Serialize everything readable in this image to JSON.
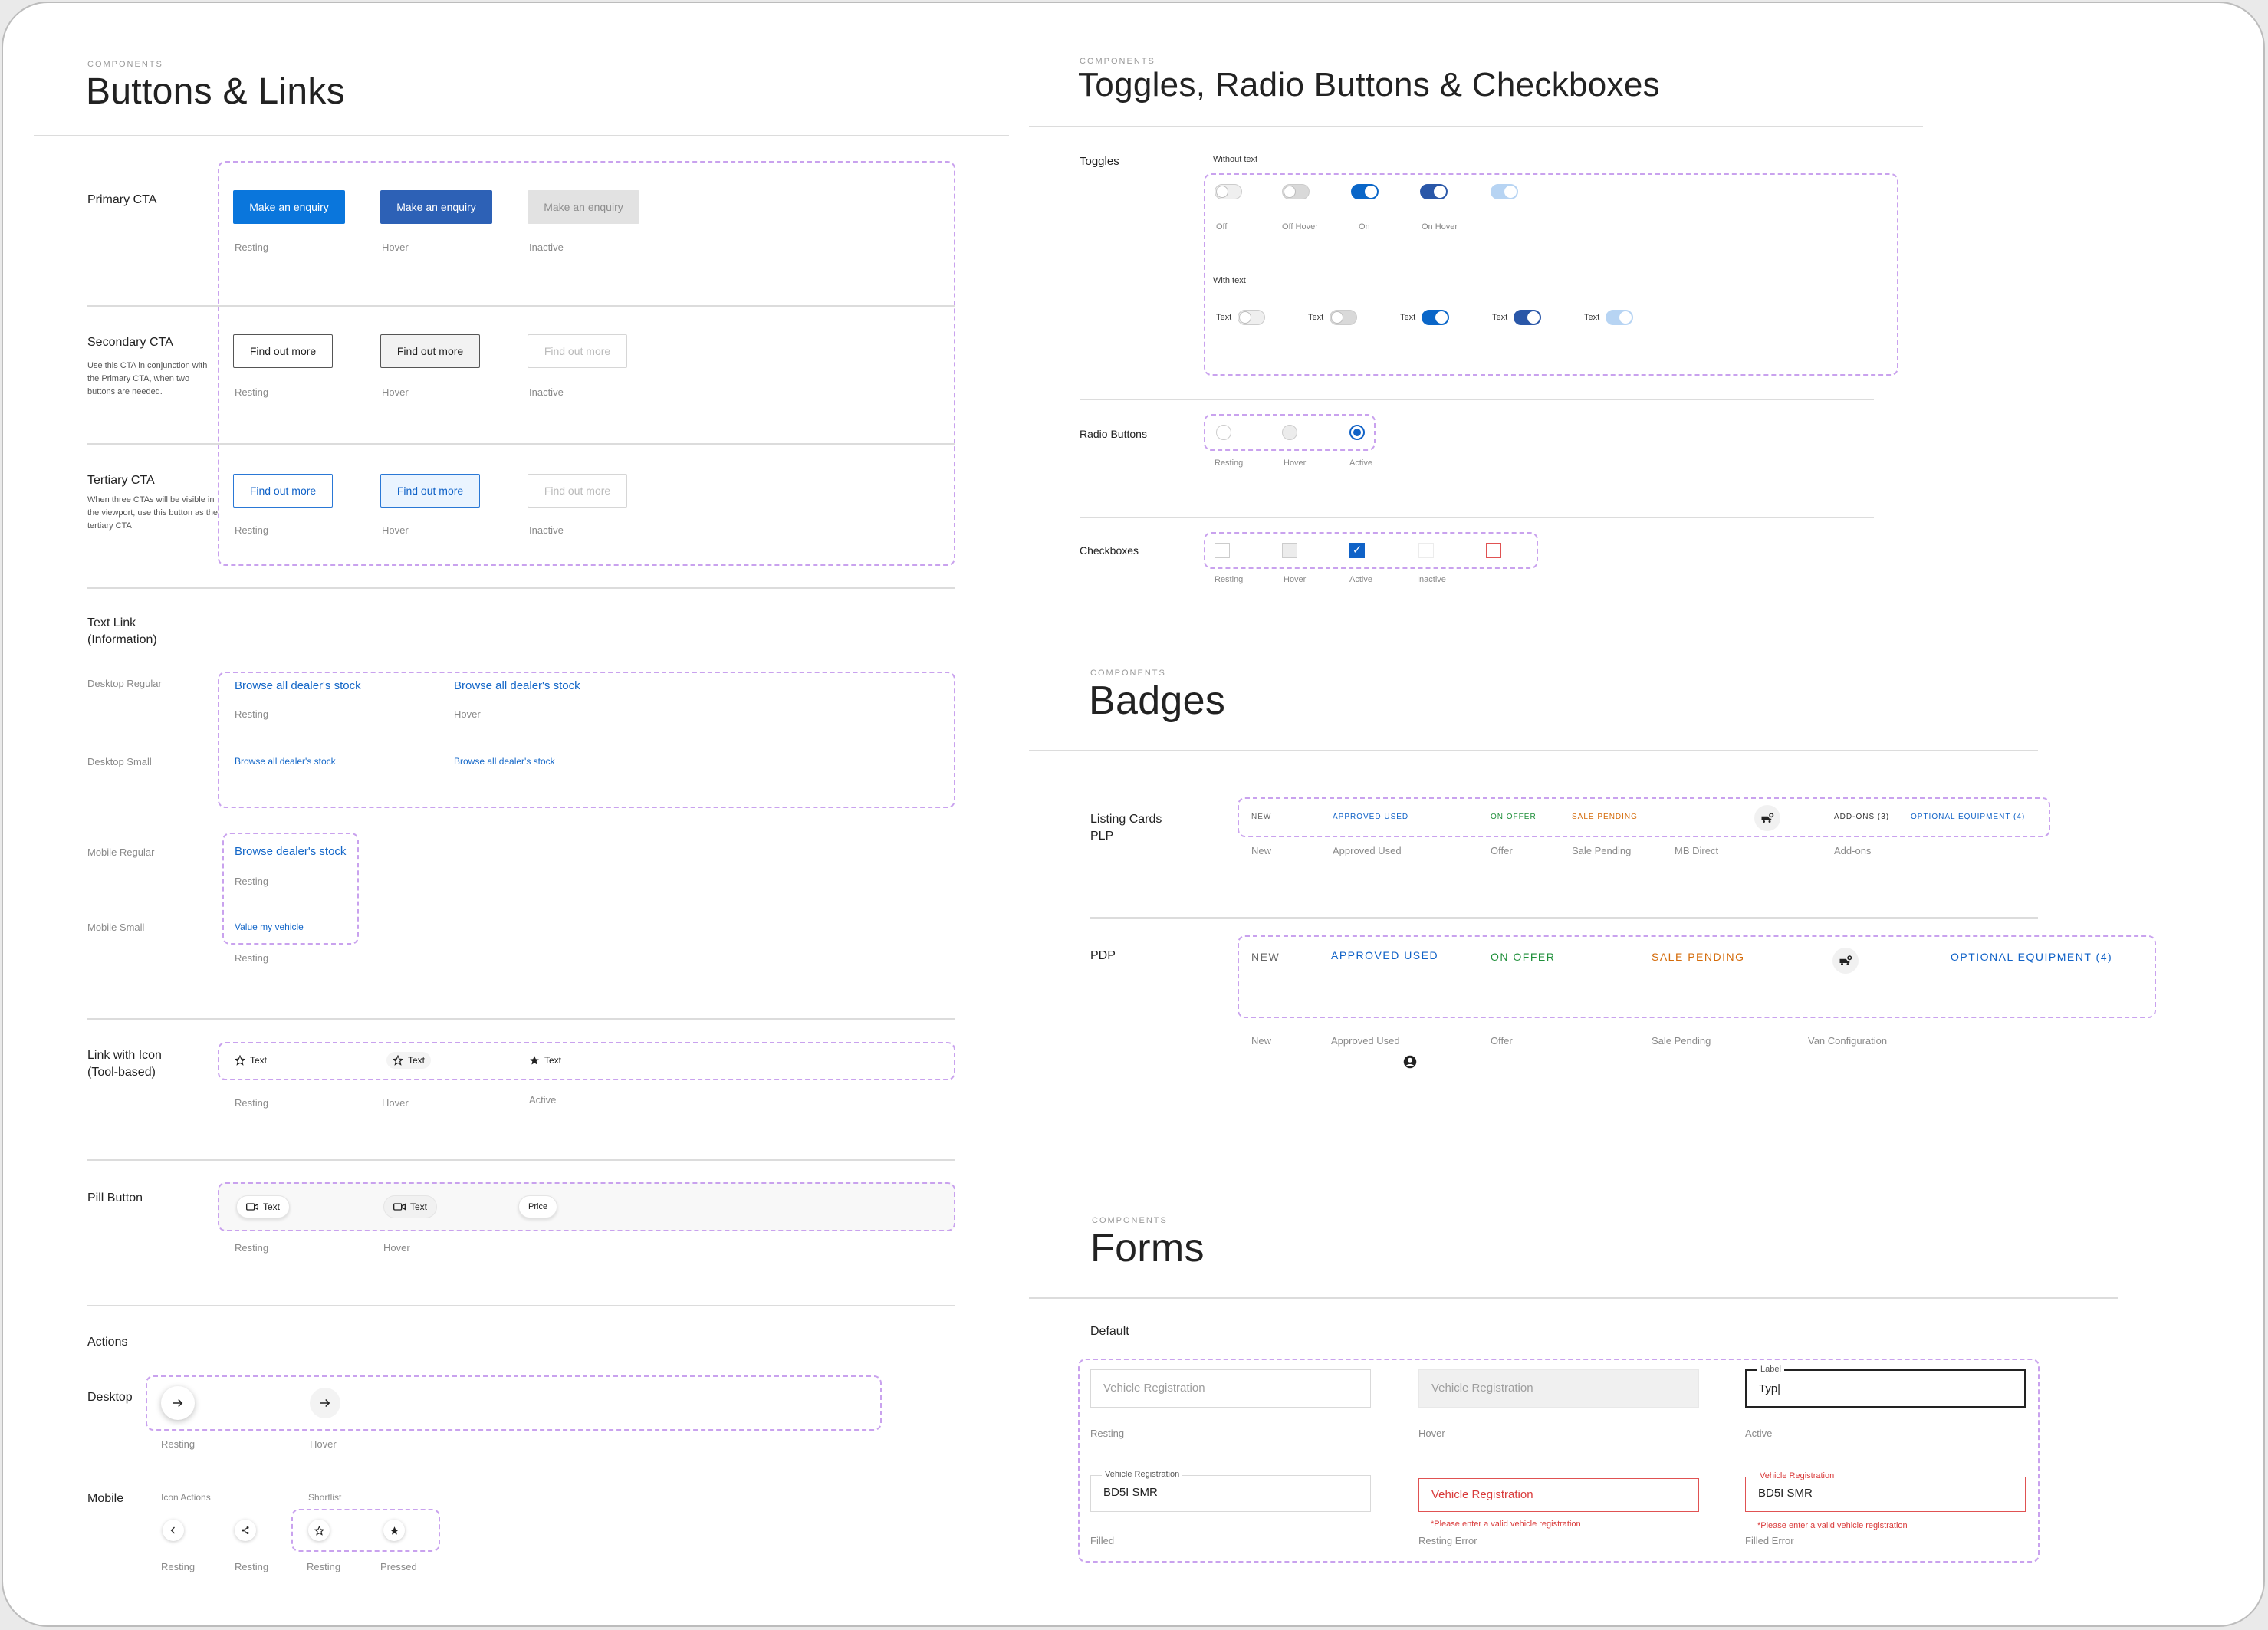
{
  "buttons_links": {
    "eyebrow": "COMPONENTS",
    "title": "Buttons & Links",
    "primary": {
      "label": "Primary CTA",
      "button_text": "Make an enquiry",
      "states": [
        "Resting",
        "Hover",
        "Inactive"
      ]
    },
    "secondary": {
      "label": "Secondary CTA",
      "desc": "Use this CTA in conjunction with the Primary CTA, when two buttons are needed.",
      "button_text": "Find out more",
      "states": [
        "Resting",
        "Hover",
        "Inactive"
      ]
    },
    "tertiary": {
      "label": "Tertiary CTA",
      "desc": "When three CTAs will be visible in the viewport, use this button as the tertiary CTA",
      "button_text": "Find out more",
      "states": [
        "Resting",
        "Hover",
        "Inactive"
      ]
    },
    "text_link": {
      "label_line1": "Text Link",
      "label_line2": "(Information)",
      "desktop_regular": "Desktop Regular",
      "desktop_small": "Desktop Small",
      "mobile_regular": "Mobile Regular",
      "mobile_small": "Mobile Small",
      "link_text": "Browse all dealer's stock",
      "mobile_link_text": "Browse dealer's stock",
      "mobile_small_text": "Value my vehicle",
      "resting": "Resting",
      "hover": "Hover"
    },
    "link_icon": {
      "label_line1": "Link with Icon",
      "label_line2": "(Tool-based)",
      "text": "Text",
      "states": [
        "Resting",
        "Hover",
        "Active"
      ]
    },
    "pill": {
      "label": "Pill Button",
      "text": "Text",
      "price": "Price",
      "states": [
        "Resting",
        "Hover"
      ]
    },
    "actions": {
      "label": "Actions",
      "desktop": "Desktop",
      "mobile": "Mobile",
      "icon_actions": "Icon Actions",
      "shortlist": "Shortlist",
      "desktop_states": [
        "Resting",
        "Hover"
      ],
      "mobile_states": [
        "Resting",
        "Resting",
        "Resting",
        "Pressed"
      ]
    }
  },
  "toggles": {
    "eyebrow": "COMPONENTS",
    "title": "Toggles, Radio Buttons & Checkboxes",
    "label": "Toggles",
    "without_text": "Without text",
    "with_text": "With text",
    "states": [
      "Off",
      "Off Hover",
      "On",
      "On Hover"
    ],
    "text": "Text",
    "radio_label": "Radio Buttons",
    "radio_states": [
      "Resting",
      "Hover",
      "Active"
    ],
    "checkbox_label": "Checkboxes",
    "checkbox_states": [
      "Resting",
      "Hover",
      "Active",
      "Inactive"
    ]
  },
  "badges": {
    "eyebrow": "COMPONENTS",
    "title": "Badges",
    "plp_line1": "Listing Cards",
    "plp_line2": "PLP",
    "pdp": "PDP",
    "new": "NEW",
    "approved": "APPROVED USED",
    "offer": "ON OFFER",
    "pending": "SALE PENDING",
    "addons": "ADD-ONS (3)",
    "optional": "OPTIONAL EQUIPMENT (4)",
    "plp_captions": [
      "New",
      "Approved Used",
      "Offer",
      "Sale Pending",
      "MB Direct",
      "Add-ons"
    ],
    "pdp_captions": [
      "New",
      "Approved Used",
      "Offer",
      "Sale Pending",
      "Van Configuration"
    ]
  },
  "forms": {
    "eyebrow": "COMPONENTS",
    "title": "Forms",
    "default": "Default",
    "placeholder": "Vehicle Registration",
    "label": "Label",
    "typing": "Typ|",
    "field_label": "Vehicle Registration",
    "value": "BD5I SMR",
    "error": "*Please enter a valid vehicle registration",
    "captions": [
      "Resting",
      "Hover",
      "Active",
      "Filled",
      "Resting Error",
      "Filled Error"
    ]
  }
}
